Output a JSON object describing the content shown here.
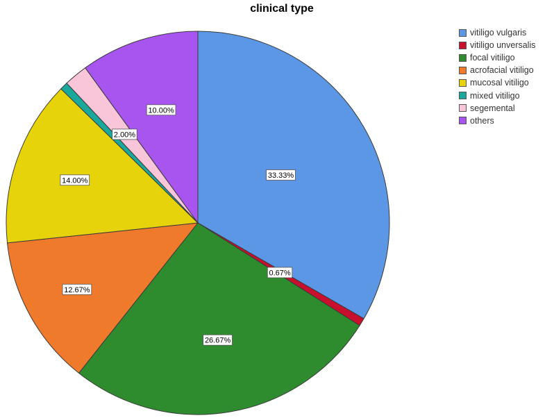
{
  "chart_data": {
    "type": "pie",
    "title": "clinical type",
    "legend_position": "top-right",
    "start_angle_deg": 0,
    "direction": "clockwise",
    "slices": [
      {
        "name": "vitiligo vulgaris",
        "value": 33.33,
        "label": "33.33%",
        "color": "#5B97E4"
      },
      {
        "name": "vitiligo unversalis",
        "value": 0.67,
        "label": "0.67%",
        "color": "#C8102E"
      },
      {
        "name": "focal vitiligo",
        "value": 26.67,
        "label": "26.67%",
        "color": "#2E8B2E"
      },
      {
        "name": "acrofacial vitiligo",
        "value": 12.67,
        "label": "12.67%",
        "color": "#F07A2C"
      },
      {
        "name": "mucosal vitiligo",
        "value": 14.0,
        "label": "14.00%",
        "color": "#E6D30A"
      },
      {
        "name": "mixed vitiligo",
        "value": 0.67,
        "label": "",
        "color": "#1BA89C"
      },
      {
        "name": "segemental",
        "value": 2.0,
        "label": "2.00%",
        "color": "#F9C6D9"
      },
      {
        "name": "others",
        "value": 10.0,
        "label": "10.00%",
        "color": "#A855F0"
      }
    ]
  }
}
